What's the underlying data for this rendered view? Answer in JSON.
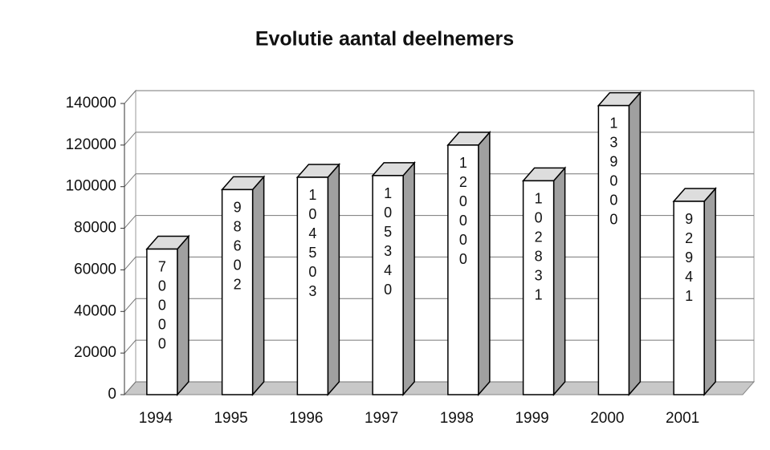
{
  "chart_data": {
    "type": "bar3d",
    "title": "Evolutie aantal deelnemers",
    "categories": [
      "1994",
      "1995",
      "1996",
      "1997",
      "1998",
      "1999",
      "2000",
      "2001"
    ],
    "values": [
      70000,
      98602,
      104503,
      105340,
      120000,
      102831,
      139000,
      92941
    ],
    "color": "#ffffff",
    "ylim": [
      0,
      140000
    ],
    "yticks": [
      0,
      20000,
      40000,
      60000,
      80000,
      100000,
      120000,
      140000
    ],
    "grid": true
  }
}
